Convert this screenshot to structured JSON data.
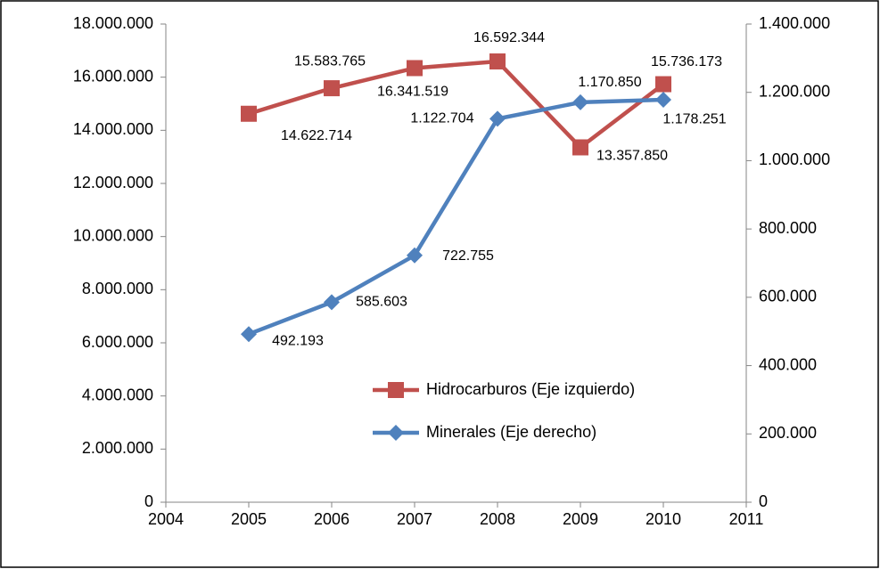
{
  "chart_data": {
    "type": "line",
    "x": [
      2005,
      2006,
      2007,
      2008,
      2009,
      2010
    ],
    "xlim": [
      2004,
      2011
    ],
    "xticks": [
      2004,
      2005,
      2006,
      2007,
      2008,
      2009,
      2010,
      2011
    ],
    "ylim": [
      0,
      18000000
    ],
    "yticks": [
      0,
      {
        "value": 2000000,
        "label": "2.000.000"
      },
      {
        "value": 4000000,
        "label": "4.000.000"
      },
      {
        "value": 6000000,
        "label": "6.000.000"
      },
      {
        "value": 8000000,
        "label": "8.000.000"
      },
      {
        "value": 10000000,
        "label": "10.000.000"
      },
      {
        "value": 12000000,
        "label": "12.000.000"
      },
      {
        "value": 14000000,
        "label": "14.000.000"
      },
      {
        "value": 16000000,
        "label": "16.000.000"
      },
      {
        "value": 18000000,
        "label": "18.000.000"
      }
    ],
    "y2lim": [
      0,
      1400000
    ],
    "y2ticks": [
      0,
      {
        "value": 200000,
        "label": "200.000"
      },
      {
        "value": 400000,
        "label": "400.000"
      },
      {
        "value": 600000,
        "label": "600.000"
      },
      {
        "value": 800000,
        "label": "800.000"
      },
      {
        "value": 1000000,
        "label": "1.000.000"
      },
      {
        "value": 1200000,
        "label": "1.200.000"
      },
      {
        "value": 1400000,
        "label": "1.400.000"
      }
    ],
    "legend": "inside-lower-right",
    "series": [
      {
        "name": "Hidrocarburos (Eje izquierdo)",
        "color": "#c0504d",
        "marker": "square",
        "values": [
          14622714,
          15583765,
          16341519,
          16592344,
          13357850,
          15736173
        ],
        "value_labels": [
          "14.622.714",
          "15.583.765",
          "16.341.519",
          "16.592.344",
          "13.357.850",
          "15.736.173"
        ]
      },
      {
        "name": "Minerales (Eje derecho)",
        "color": "#4f81bd",
        "marker": "diamond",
        "axis": "y2",
        "values": [
          492193,
          585603,
          722755,
          1122704,
          1170850,
          1178251
        ],
        "value_labels": [
          "492.193",
          "585.603",
          "722.755",
          "1.122.704",
          "1.170.850",
          "1.178.251"
        ]
      }
    ]
  }
}
